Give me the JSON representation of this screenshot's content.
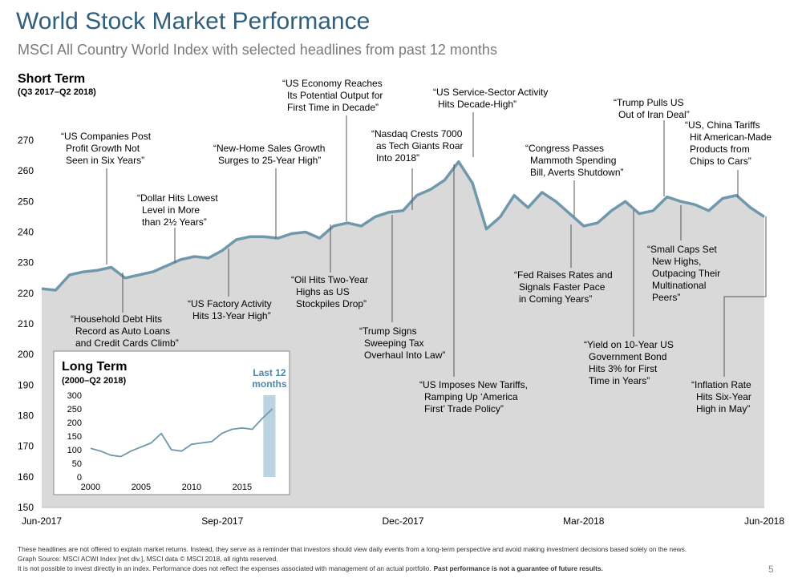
{
  "title": "World Stock Market Performance",
  "subtitle": "MSCI All Country World Index with selected headlines from past 12 months",
  "footer_notes": [
    "These headlines are not offered to explain market returns. Instead, they serve as a reminder that investors should view daily events from a long-term perspective and avoid making investment decisions based solely on the news.",
    "Graph Source: MSCI ACWI Index [net div.], MSCI data © MSCI 2018, all rights reserved.",
    "It is not possible to invest directly in an index. Performance does not reflect the expenses associated with management of an actual portfolio."
  ],
  "footer_emphasis": "Past performance is not a guarantee of future results.",
  "page_number": "5",
  "chart_data": [
    {
      "type": "area",
      "title": "Short Term",
      "subtitle": "(Q3 2017–Q2 2018)",
      "categories": [
        "Jun-2017",
        null,
        null,
        null,
        null,
        null,
        null,
        null,
        null,
        null,
        null,
        null,
        null,
        "Sep-2017",
        null,
        null,
        null,
        null,
        null,
        null,
        null,
        null,
        null,
        null,
        null,
        null,
        "Dec-2017",
        null,
        null,
        null,
        null,
        null,
        null,
        null,
        null,
        null,
        null,
        null,
        null,
        "Mar-2018",
        null,
        null,
        null,
        null,
        null,
        null,
        null,
        null,
        null,
        null,
        null,
        null,
        "Jun-2018"
      ],
      "values": [
        221.5,
        221,
        226,
        227,
        227.5,
        228.5,
        225,
        226,
        227,
        229,
        231,
        232,
        231.5,
        234,
        237.5,
        238.5,
        238.5,
        238,
        239.5,
        240,
        238,
        242,
        243,
        242,
        245,
        246.5,
        247,
        252,
        254,
        257,
        263,
        256,
        241,
        245,
        252,
        248,
        253,
        250,
        246,
        242,
        243,
        247,
        250,
        246,
        247,
        251.5,
        250,
        249,
        247,
        251,
        252,
        248,
        245
      ],
      "ylim": [
        150,
        270
      ],
      "yticks": [
        150,
        160,
        170,
        180,
        190,
        200,
        210,
        220,
        230,
        240,
        250,
        260,
        270
      ],
      "color": "#6f98ad",
      "fill": "#d9d9d9",
      "annotations": [
        [
          "“US Companies Post",
          "Profit Growth Not",
          "Seen in Six Years”"
        ],
        [
          "“Household Debt Hits",
          "Record as Auto Loans",
          "and Credit Cards Climb”"
        ],
        [
          "“Dollar Hits Lowest",
          "Level in More",
          "than 2½ Years”"
        ],
        [
          "“US Factory Activity",
          "Hits 13-Year High”"
        ],
        [
          "“New-Home Sales Growth",
          "Surges to 25-Year High”"
        ],
        [
          "“US Economy Reaches",
          "Its Potential Output for",
          "First Time in Decade”"
        ],
        [
          "“Oil Hits Two-Year",
          "Highs as US",
          "Stockpiles Drop”"
        ],
        [
          "“Nasdaq Crests 7000",
          "as Tech Giants Roar",
          "Into 2018”"
        ],
        [
          "“Trump Signs",
          "Sweeping Tax",
          "Overhaul Into Law”"
        ],
        [
          "“US Imposes New Tariffs,",
          "Ramping Up ‘America",
          "First’ Trade Policy”"
        ],
        [
          "“US Service-Sector Activity",
          "Hits Decade-High”"
        ],
        [
          "“Congress Passes",
          "Mammoth Spending",
          "Bill, Averts Shutdown”"
        ],
        [
          "“Fed Raises Rates and",
          "Signals Faster Pace",
          "in Coming Years”"
        ],
        [
          "“Trump Pulls US",
          "Out of Iran Deal”"
        ],
        [
          "“US, China Tariffs",
          "Hit American-Made",
          "Products from",
          "Chips to Cars”"
        ],
        [
          "“Small Caps Set",
          "New Highs,",
          "Outpacing Their",
          "Multinational",
          "Peers”"
        ],
        [
          "“Yield on 10-Year US",
          "Government Bond",
          "Hits 3% for First",
          "Time in Years”"
        ],
        [
          "“Inflation Rate",
          "Hits Six-Year",
          "High in May”"
        ]
      ]
    },
    {
      "type": "line",
      "title": "Long Term",
      "subtitle": "(2000–Q2 2018)",
      "highlight_label": [
        "Last 12",
        "months"
      ],
      "highlight_x": [
        2017.1,
        2018.3
      ],
      "highlight_color": "#bcd4e0",
      "x": [
        2000,
        2001,
        2002,
        2003,
        2004,
        2005,
        2006,
        2007,
        2008,
        2009,
        2010,
        2011,
        2012,
        2013,
        2014,
        2015,
        2016,
        2017,
        2018
      ],
      "values": [
        105,
        95,
        80,
        75,
        95,
        110,
        125,
        160,
        100,
        95,
        120,
        125,
        130,
        160,
        175,
        180,
        175,
        215,
        250
      ],
      "xlim": [
        1998.5,
        2018.5
      ],
      "xticks": [
        2000,
        2005,
        2010,
        2015
      ],
      "ylim": [
        0,
        300
      ],
      "yticks": [
        0,
        50,
        100,
        150,
        200,
        250,
        300
      ],
      "color": "#6f98ad"
    }
  ]
}
